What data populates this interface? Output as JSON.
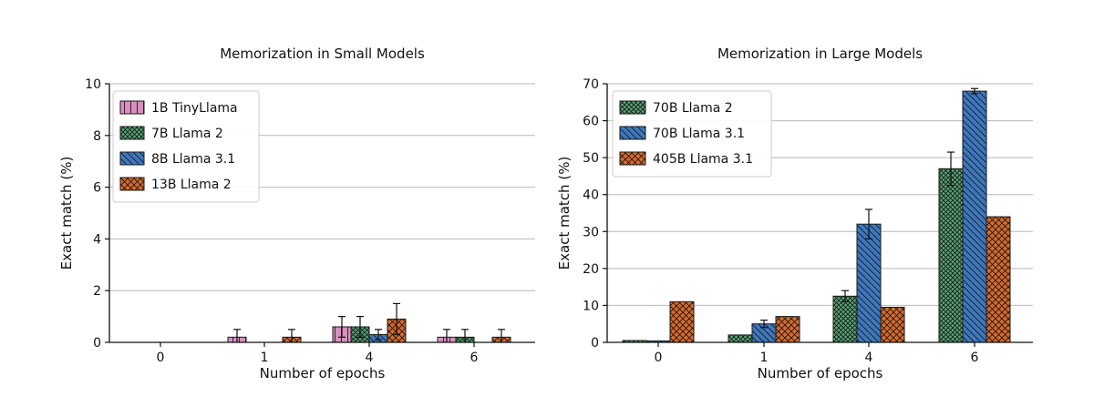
{
  "chart_data": [
    {
      "type": "bar",
      "title": "Memorization in Small Models",
      "xlabel": "Number of epochs",
      "ylabel": "Exact match (%)",
      "categories": [
        "0",
        "1",
        "4",
        "6"
      ],
      "ylim": [
        0,
        10
      ],
      "yticks": [
        0,
        2,
        4,
        6,
        8,
        10
      ],
      "grid": true,
      "legend_position": "top-left",
      "series": [
        {
          "name": "1B TinyLlama",
          "color": "#d98fbf",
          "hatch": "vertical",
          "values": [
            0,
            0.2,
            0.6,
            0.2
          ],
          "errors": [
            0,
            0.3,
            0.4,
            0.3
          ]
        },
        {
          "name": "7B Llama 2",
          "color": "#56a874",
          "hatch": "crosshatch",
          "values": [
            0,
            0,
            0.6,
            0.2
          ],
          "errors": [
            0,
            0,
            0.4,
            0.3
          ]
        },
        {
          "name": "8B Llama 3.1",
          "color": "#3d78bf",
          "hatch": "backslash",
          "values": [
            0,
            0,
            0.3,
            0
          ],
          "errors": [
            0,
            0,
            0.2,
            0
          ]
        },
        {
          "name": "13B Llama 2",
          "color": "#d9692b",
          "hatch": "xhatch",
          "values": [
            0,
            0.2,
            0.9,
            0.2
          ],
          "errors": [
            0,
            0.3,
            0.6,
            0.3
          ]
        }
      ]
    },
    {
      "type": "bar",
      "title": "Memorization in Large Models",
      "xlabel": "Number of epochs",
      "ylabel": "Exact match (%)",
      "categories": [
        "0",
        "1",
        "4",
        "6"
      ],
      "ylim": [
        0,
        70
      ],
      "yticks": [
        0,
        10,
        20,
        30,
        40,
        50,
        60,
        70
      ],
      "grid": true,
      "legend_position": "top-left",
      "series": [
        {
          "name": "70B Llama 2",
          "color": "#56a874",
          "hatch": "crosshatch",
          "values": [
            0.5,
            2,
            12.5,
            47
          ],
          "errors": [
            0,
            0,
            1.5,
            4.5
          ]
        },
        {
          "name": "70B Llama 3.1",
          "color": "#3d78bf",
          "hatch": "backslash",
          "values": [
            0.4,
            5,
            32,
            68
          ],
          "errors": [
            0,
            1,
            4,
            0.7
          ]
        },
        {
          "name": "405B Llama 3.1",
          "color": "#d9692b",
          "hatch": "xhatch",
          "values": [
            11,
            7,
            9.5,
            34
          ],
          "errors": [
            0,
            0,
            0,
            0
          ]
        }
      ]
    }
  ]
}
